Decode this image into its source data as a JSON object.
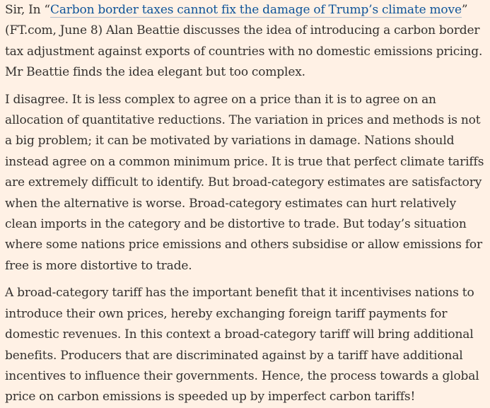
{
  "letter": {
    "salutation": "Sir, In ",
    "open_quote": "“",
    "article_link": "Carbon border taxes cannot fix the damage of Trump’s climate move",
    "close_quote": "”",
    "para1_rest": " (FT.com, June 8) Alan Beattie discusses the idea of introducing a carbon border tax adjustment against exports of countries with no domestic emissions pricing. Mr Beattie finds the idea elegant but too complex.",
    "para2": "I disagree. It is less complex to agree on a price than it is to agree on an allocation of quantitative reductions. The variation in prices and methods is not a big problem; it can be motivated by variations in damage. Nations should instead agree on a common minimum price. It is true that perfect climate tariffs are extremely difficult to identify. But broad-category estimates are satisfactory when the alternative is worse. Broad-category estimates can hurt relatively clean imports in the category and be distortive to trade. But today’s situation where some nations price emissions and others subsidise or allow emissions for free is more distortive to trade.",
    "para3": "A broad-category tariff has the important benefit that it incentivises nations to introduce their own prices, hereby exchanging foreign tariff payments for domestic revenues. In this context a broad-category tariff will bring additional benefits. Producers that are discriminated against by a tariff have additional incentives to influence their governments. Hence, the process towards a global price on carbon emissions is speeded up by imperfect carbon tariffs!"
  },
  "colors": {
    "background": "#fff1e5",
    "text": "#33302e",
    "link": "#0f5499"
  }
}
